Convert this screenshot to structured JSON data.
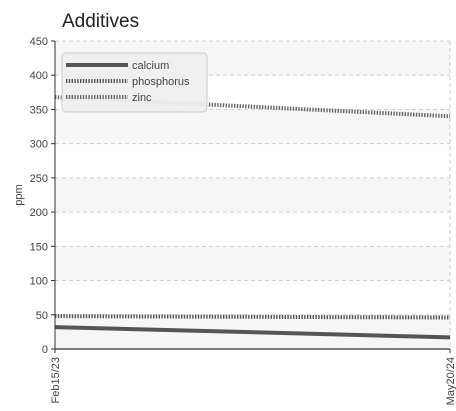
{
  "chart_data": {
    "type": "line",
    "title": "Additives",
    "xlabel": "",
    "ylabel": "ppm",
    "x": [
      "Feb15/23",
      "May20/24"
    ],
    "x_tick_labels": [
      "Feb15/23",
      "May20/24"
    ],
    "ylim": [
      0,
      450
    ],
    "y_ticks": [
      0,
      50,
      100,
      150,
      200,
      250,
      300,
      350,
      400,
      450
    ],
    "grid": true,
    "legend_position": "top-left",
    "series": [
      {
        "name": "calcium",
        "values": [
          32,
          17
        ],
        "color": "#555555",
        "style": "solid"
      },
      {
        "name": "phosphorus",
        "values": [
          48,
          46
        ],
        "color": "#555555",
        "style": "dotted"
      },
      {
        "name": "zinc",
        "values": [
          368,
          340
        ],
        "color": "#666666",
        "style": "dotted"
      }
    ]
  }
}
